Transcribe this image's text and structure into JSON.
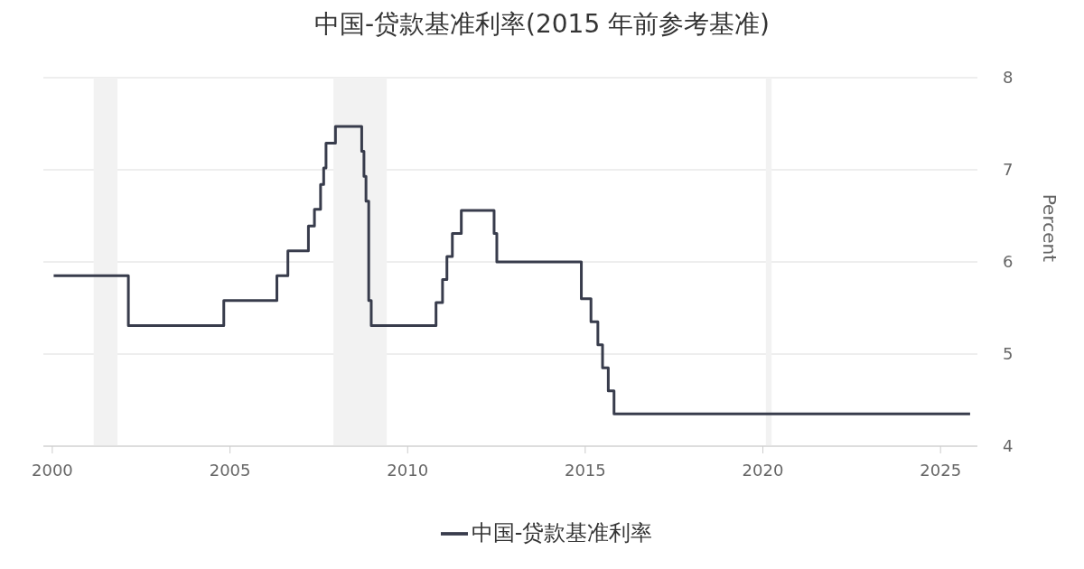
{
  "chart_data": {
    "type": "step",
    "title": "中国-贷款基准利率(2015 年前参考基准)",
    "ylabel": "Percent",
    "x": [
      "2000-01-15",
      "2002-02-21",
      "2004-10-29",
      "2006-04-28",
      "2006-08-19",
      "2007-03-18",
      "2007-05-19",
      "2007-07-21",
      "2007-08-22",
      "2007-09-15",
      "2007-12-21",
      "2008-09-16",
      "2008-10-09",
      "2008-10-30",
      "2008-11-27",
      "2008-12-23",
      "2010-10-20",
      "2010-12-26",
      "2011-02-09",
      "2011-04-06",
      "2011-07-07",
      "2012-06-08",
      "2012-07-06",
      "2014-11-22",
      "2015-03-01",
      "2015-05-11",
      "2015-06-28",
      "2015-08-26",
      "2015-10-24",
      "2025-11-01"
    ],
    "series": [
      {
        "name": "中国-贷款基准利率",
        "color": "#383c4c",
        "values": [
          5.85,
          5.31,
          5.58,
          5.85,
          6.12,
          6.39,
          6.57,
          6.84,
          7.02,
          7.29,
          7.47,
          7.2,
          6.93,
          6.66,
          5.58,
          5.31,
          5.56,
          5.81,
          6.06,
          6.31,
          6.56,
          6.31,
          6.0,
          5.6,
          5.35,
          5.1,
          4.85,
          4.6,
          4.35,
          4.35
        ]
      }
    ],
    "xlim": [
      "1999-10-01",
      "2026-01-15"
    ],
    "xticks": [
      "2000",
      "2005",
      "2010",
      "2015",
      "2020",
      "2025"
    ],
    "ylim": [
      4,
      8
    ],
    "yticks": [
      4,
      5,
      6,
      7,
      8
    ],
    "grid": "y",
    "legend": "bottom",
    "bands": [
      {
        "axis": "x",
        "from": "2001-03-01",
        "to": "2001-11-01",
        "color": "#f2f2f2"
      },
      {
        "axis": "x",
        "from": "2007-12-01",
        "to": "2009-06-01",
        "color": "#f2f2f2"
      },
      {
        "axis": "x",
        "from": "2020-02-01",
        "to": "2020-04-01",
        "color": "#f2f2f2"
      }
    ]
  }
}
